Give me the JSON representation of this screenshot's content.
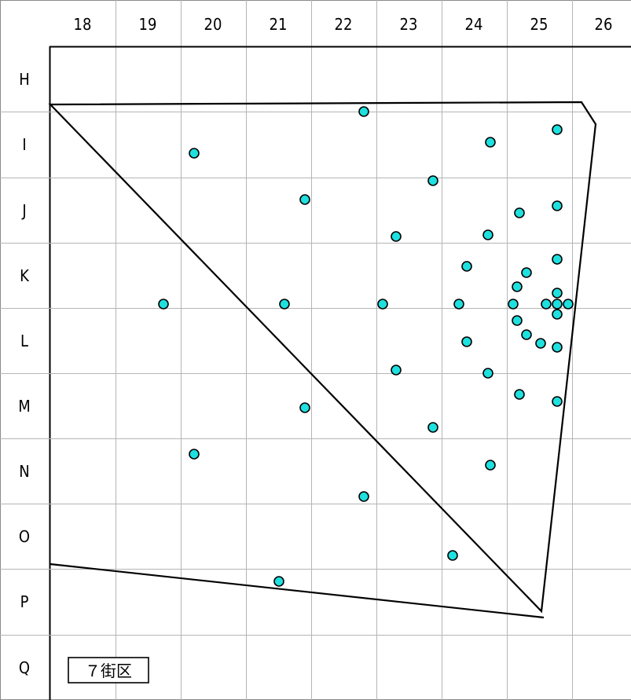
{
  "grid": {
    "columns": [
      "18",
      "19",
      "20",
      "21",
      "22",
      "23",
      "24",
      "25",
      "26"
    ],
    "rows": [
      "H",
      "I",
      "J",
      "K",
      "L",
      "M",
      "N",
      "O",
      "P",
      "Q"
    ]
  },
  "block_label": "７街区",
  "colors": {
    "point_fill": "#1ee0df",
    "point_stroke": "#000000",
    "boundary": "#000000",
    "grid": "#b5b5b5"
  }
}
